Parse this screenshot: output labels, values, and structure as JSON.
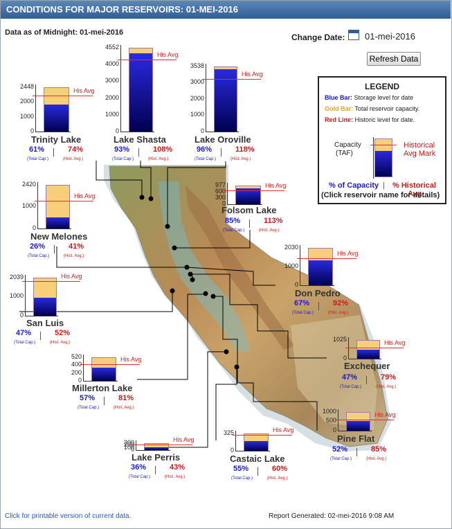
{
  "header": {
    "title": "CONDITIONS FOR MAJOR RESERVOIRS: 01-MEI-2016"
  },
  "data_as_of": "Data as of Midnight: 01-mei-2016",
  "change_date": {
    "label": "Change Date:",
    "value": "01-mei-2016",
    "icon": "calendar-icon"
  },
  "refresh_label": "Refresh Data",
  "his_avg_label": "His Avg",
  "total_cap_label": "(Total Cap.)",
  "hist_avg_label": "(Hist. Avg.)",
  "sep": "|",
  "reservoirs": [
    {
      "key": "trinity",
      "name": "Trinity Lake",
      "capacity_label": "2448",
      "ticks": [
        "2000",
        "1000",
        "0"
      ],
      "pct_total": "61%",
      "pct_hist": "74%",
      "storage_frac": 0.61,
      "avg_frac": 0.82
    },
    {
      "key": "shasta",
      "name": "Lake Shasta",
      "capacity_label": "4552",
      "ticks": [
        "4000",
        "3000",
        "2000",
        "1000",
        "0"
      ],
      "pct_total": "93%",
      "pct_hist": "108%",
      "storage_frac": 0.93,
      "avg_frac": 0.86
    },
    {
      "key": "oroville",
      "name": "Lake Oroville",
      "capacity_label": "3538",
      "ticks": [
        "3000",
        "2000",
        "1000",
        "0"
      ],
      "pct_total": "96%",
      "pct_hist": "118%",
      "storage_frac": 0.96,
      "avg_frac": 0.81
    },
    {
      "key": "melones",
      "name": "New Melones",
      "capacity_label": "2420",
      "ticks": [
        "1000",
        "0"
      ],
      "pct_total": "26%",
      "pct_hist": "41%",
      "storage_frac": 0.26,
      "avg_frac": 0.63
    },
    {
      "key": "folsom",
      "name": "Folsom Lake",
      "capacity_label": "977",
      "ticks": [
        "600",
        "300",
        "0"
      ],
      "pct_total": "85%",
      "pct_hist": "113%",
      "storage_frac": 0.85,
      "avg_frac": 0.75
    },
    {
      "key": "pedro",
      "name": "Don Pedro",
      "capacity_label": "2030",
      "ticks": [
        "1000",
        "0"
      ],
      "pct_total": "67%",
      "pct_hist": "92%",
      "storage_frac": 0.67,
      "avg_frac": 0.73
    },
    {
      "key": "sanluis",
      "name": "San Luis",
      "capacity_label": "2039",
      "ticks": [
        "1000",
        "0"
      ],
      "pct_total": "47%",
      "pct_hist": "52%",
      "storage_frac": 0.47,
      "avg_frac": 0.9
    },
    {
      "key": "exchequer",
      "name": "Exchequer",
      "capacity_label": "1025",
      "ticks": [
        "0"
      ],
      "pct_total": "47%",
      "pct_hist": "79%",
      "storage_frac": 0.47,
      "avg_frac": 0.59
    },
    {
      "key": "millerton",
      "name": "Millerton Lake",
      "capacity_label": "520",
      "ticks": [
        "400",
        "200",
        "0"
      ],
      "pct_total": "57%",
      "pct_hist": "81%",
      "storage_frac": 0.57,
      "avg_frac": 0.7
    },
    {
      "key": "pineflat",
      "name": "Pine Flat",
      "capacity_label": "1000",
      "ticks": [
        "500",
        "0"
      ],
      "pct_total": "52%",
      "pct_hist": "85%",
      "storage_frac": 0.52,
      "avg_frac": 0.61
    },
    {
      "key": "perris",
      "name": "Lake Perris",
      "capacity_label": "300",
      "ticks": [
        "200",
        "100",
        "0"
      ],
      "pct_total": "36%",
      "pct_hist": "43%",
      "storage_frac": 0.36,
      "avg_frac": 0.84
    },
    {
      "key": "castaic",
      "name": "Castaic Lake",
      "capacity_label": "325",
      "ticks": [
        "0"
      ],
      "pct_total": "55%",
      "pct_hist": "60%",
      "storage_frac": 0.55,
      "avg_frac": 0.92
    }
  ],
  "legend": {
    "title": "LEGEND",
    "blue_key": "Blue Bar:",
    "blue_text": " Storage level for date",
    "gold_key": "Gold Bar:",
    "gold_text": " Total reservoir capacity.",
    "red_key": "Red Line:",
    "red_text": " Historic level for date.",
    "capacity_label": "Capacity",
    "taf_label": "(TAF)",
    "historical_label": "Historical",
    "avg_mark_label": "Avg Mark",
    "pct_capacity": "% of Capacity",
    "pct_hist": "% Historical",
    "avg_label": "Avg",
    "click_note": "(Click reservoir name for details)"
  },
  "footer": {
    "printable_link": "Click for printable version of current data.",
    "report_generated": "Report Generated: 02-mei-2016 9:08 AM"
  },
  "colors": {
    "storage": "#1a1acc",
    "capacity": "#f7cf7a",
    "historic": "#e03030",
    "header": "#2f5e96"
  }
}
